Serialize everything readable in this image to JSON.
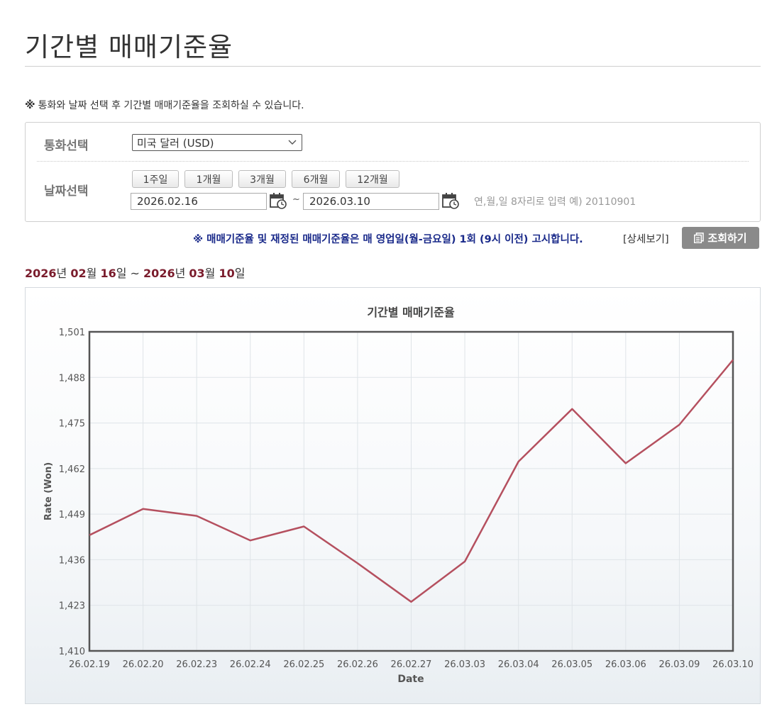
{
  "header": {
    "title": "기간별 매매기준율"
  },
  "notice": {
    "mark": "※",
    "text": "통화와 날짜 선택 후 기간별 매매기준율을 조회하실 수 있습니다."
  },
  "form": {
    "currency_label": "통화선택",
    "currency_value": "미국 달러 (USD)",
    "date_label": "날짜선택",
    "periods": [
      "1주일",
      "1개월",
      "3개월",
      "6개월",
      "12개월"
    ],
    "start_date": "2026.02.16",
    "end_date": "2026.03.10",
    "tilde": "~",
    "hint": "연,월,일 8자리로 입력 예) 20110901"
  },
  "info": {
    "text": "※ 매매기준율 및 재정된 매매기준율은 매 영업일(월-금요일) 1회 (9시 이전) 고시합니다.",
    "detail_link": "[상세보기]",
    "query_button": "조회하기"
  },
  "range": {
    "start_year": "2026",
    "start_month": "02",
    "start_day": "16",
    "end_year": "2026",
    "end_month": "03",
    "end_day": "10",
    "year_unit": "년",
    "month_unit": "월",
    "day_unit": "일",
    "sep": "~"
  },
  "chart_data": {
    "type": "line",
    "title": "기간별 매매기준율",
    "xlabel": "Date",
    "ylabel": "Rate (Won)",
    "ylim": [
      1410,
      1501
    ],
    "yticks": [
      "1,410",
      "1,423",
      "1,436",
      "1,449",
      "1,462",
      "1,475",
      "1,488",
      "1,501"
    ],
    "ytick_values": [
      1410,
      1423,
      1436,
      1449,
      1462,
      1475,
      1488,
      1501
    ],
    "categories": [
      "26.02.19",
      "26.02.20",
      "26.02.23",
      "26.02.24",
      "26.02.25",
      "26.02.26",
      "26.02.27",
      "26.03.03",
      "26.03.04",
      "26.03.05",
      "26.03.06",
      "26.03.09",
      "26.03.10"
    ],
    "values": [
      1443.0,
      1450.5,
      1448.5,
      1441.5,
      1445.5,
      1435.0,
      1424.0,
      1435.5,
      1464.0,
      1479.0,
      1463.5,
      1474.5,
      1493.0
    ],
    "line_color": "#b5505f",
    "grid": true
  }
}
